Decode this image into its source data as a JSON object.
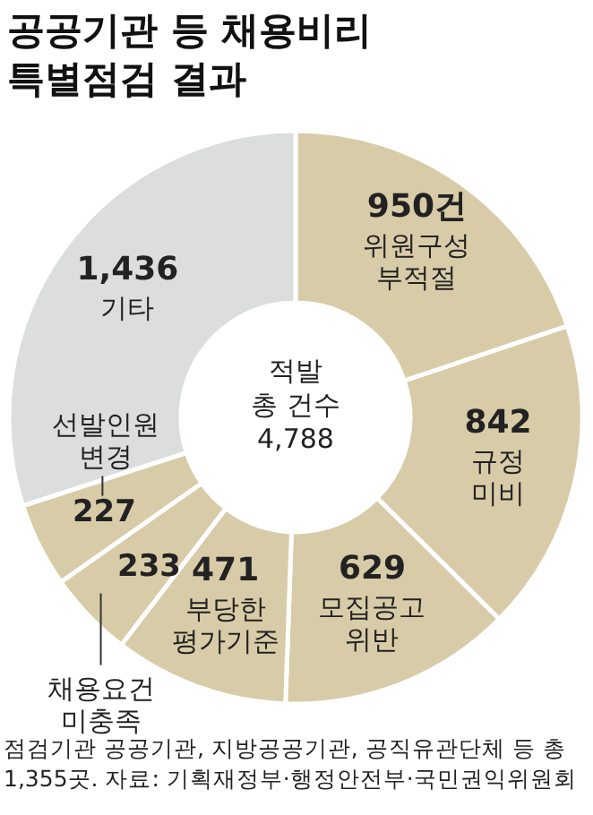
{
  "chart_data": {
    "type": "donut",
    "title": "공공기관 등 채용비리\n특별점검 결과",
    "categories": [
      "위원구성\n부적절",
      "규정\n미비",
      "모집공고\n위반",
      "부당한\n평가기준",
      "채용요건\n미충족",
      "선발인원\n변경",
      "기타"
    ],
    "values": [
      950,
      842,
      629,
      471,
      233,
      227,
      1436
    ],
    "value_labels": [
      "950건",
      "842",
      "629",
      "471",
      "233",
      "227",
      "1,436"
    ],
    "colors": [
      "#d8cba7",
      "#d8cba7",
      "#d8cba7",
      "#d8cba7",
      "#d8cba7",
      "#d8cba7",
      "#dcdedd"
    ],
    "annotations": [
      "적발\n총 건수\n4,788",
      "점검기관 공공기관, 지방공공기관, 공직유관단체 등 총\n1,355곳. 자료: 기획재정부·행정안전부·국민권익위원회"
    ],
    "legend": false
  }
}
